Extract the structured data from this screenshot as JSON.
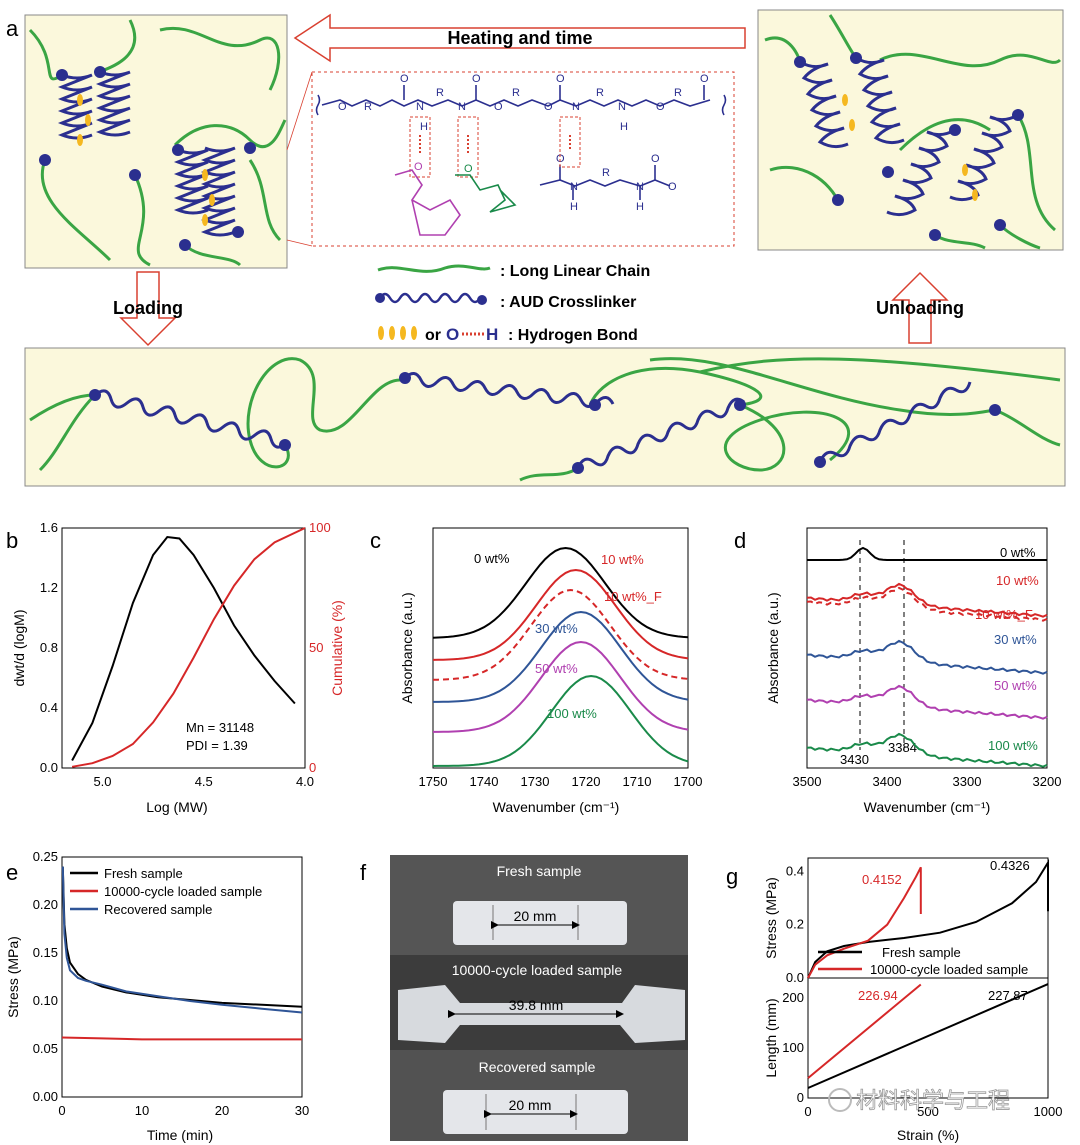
{
  "panel_letters": {
    "a": "a",
    "b": "b",
    "c": "c",
    "d": "d",
    "e": "e",
    "f": "f",
    "g": "g"
  },
  "schematic": {
    "heating": "Heating and time",
    "loading": "Loading",
    "unloading": "Unloading",
    "legend": {
      "chain": ": Long Linear Chain",
      "crosslinker": ": AUD Crosslinker",
      "or": "or",
      "o": "O",
      "h": "H",
      "hbond": ": Hydrogen Bond"
    },
    "chem": {
      "r1": "R",
      "r2": "R",
      "r3": "R"
    }
  },
  "photo": {
    "fresh_label": "Fresh sample",
    "fresh_len": "20 mm",
    "loaded_label": "10000-cycle loaded sample",
    "loaded_len": "39.8 mm",
    "recovered_label": "Recovered sample",
    "recovered_len": "20 mm"
  },
  "watermark": "材料科学与工程",
  "chart_data": [
    {
      "panel": "b",
      "type": "line",
      "xlabel": "Log (MW)",
      "ylabel": "dwt/d (logM)",
      "y2label": "Cumulative (%)",
      "xlim": [
        5.2,
        4.0
      ],
      "ylim": [
        0,
        1.6
      ],
      "y2lim": [
        0,
        100
      ],
      "xticks": [
        "5.0",
        "4.5",
        "4.0"
      ],
      "yticks": [
        "0.0",
        "0.4",
        "0.8",
        "1.2",
        "1.6"
      ],
      "y2ticks": [
        "0",
        "50",
        "100"
      ],
      "series": [
        {
          "color": "#000000",
          "axis": "left",
          "x": [
            5.15,
            5.05,
            4.95,
            4.85,
            4.75,
            4.68,
            4.62,
            4.55,
            4.45,
            4.35,
            4.25,
            4.15,
            4.05
          ],
          "y": [
            0.05,
            0.3,
            0.68,
            1.1,
            1.42,
            1.54,
            1.53,
            1.42,
            1.2,
            0.95,
            0.75,
            0.58,
            0.43
          ]
        },
        {
          "color": "#d62728",
          "axis": "right",
          "x": [
            5.15,
            5.05,
            4.95,
            4.85,
            4.75,
            4.65,
            4.55,
            4.45,
            4.35,
            4.25,
            4.15,
            4.0
          ],
          "y": [
            0.5,
            2,
            5,
            10,
            19,
            31,
            46,
            62,
            76,
            87,
            94,
            100
          ]
        }
      ],
      "annotations": [
        "Mn = 31148",
        "PDI = 1.39"
      ]
    },
    {
      "panel": "c",
      "type": "line",
      "xlabel": "Wavenumber (cm⁻¹)",
      "ylabel": "Absorbance (a.u.)",
      "xlim": [
        1750,
        1700
      ],
      "xticks": [
        "1750",
        "1740",
        "1730",
        "1720",
        "1710",
        "1700"
      ],
      "series": [
        {
          "name": "0 wt%",
          "color": "#000000",
          "peak": 1724
        },
        {
          "name": "10 wt%",
          "color": "#d62728",
          "peak": 1722
        },
        {
          "name": "10 wt%_F",
          "color": "#d62728",
          "dashed": true,
          "peak": 1723
        },
        {
          "name": "30 wt%",
          "color": "#2f5597",
          "peak": 1721
        },
        {
          "name": "50 wt%",
          "color": "#b040b0",
          "peak": 1721
        },
        {
          "name": "100 wt%",
          "color": "#1a8a4a",
          "peak": 1719
        }
      ]
    },
    {
      "panel": "d",
      "type": "line",
      "xlabel": "Wavenumber (cm⁻¹)",
      "ylabel": "Absorbance (a.u.)",
      "xlim": [
        3500,
        3200
      ],
      "xticks": [
        "3500",
        "3400",
        "3300",
        "3200"
      ],
      "reference_lines": [
        "3430",
        "3384"
      ],
      "series": [
        {
          "name": "0 wt%",
          "color": "#000000"
        },
        {
          "name": "10 wt%",
          "color": "#d62728"
        },
        {
          "name": "10 wt%_F",
          "color": "#d62728",
          "dashed": true
        },
        {
          "name": "30 wt%",
          "color": "#2f5597"
        },
        {
          "name": "50 wt%",
          "color": "#b040b0"
        },
        {
          "name": "100 wt%",
          "color": "#1a8a4a"
        }
      ]
    },
    {
      "panel": "e",
      "type": "line",
      "xlabel": "Time (min)",
      "ylabel": "Stress (MPa)",
      "xlim": [
        0,
        30
      ],
      "ylim": [
        0,
        0.25
      ],
      "xticks": [
        "0",
        "10",
        "20",
        "30"
      ],
      "yticks": [
        "0.00",
        "0.05",
        "0.10",
        "0.15",
        "0.20",
        "0.25"
      ],
      "series": [
        {
          "name": "Fresh sample",
          "color": "#000000",
          "x": [
            0.1,
            0.3,
            0.6,
            1,
            2,
            3,
            5,
            8,
            12,
            16,
            20,
            25,
            30
          ],
          "y": [
            0.24,
            0.18,
            0.155,
            0.14,
            0.128,
            0.122,
            0.115,
            0.109,
            0.104,
            0.101,
            0.098,
            0.096,
            0.094
          ]
        },
        {
          "name": "10000-cycle loaded sample",
          "color": "#d62728",
          "x": [
            0,
            5,
            10,
            20,
            30
          ],
          "y": [
            0.062,
            0.061,
            0.06,
            0.06,
            0.06
          ]
        },
        {
          "name": "Recovered sample",
          "color": "#2f5597",
          "x": [
            0.1,
            0.3,
            0.6,
            1,
            2,
            3,
            5,
            8,
            12,
            16,
            20,
            25,
            30
          ],
          "y": [
            0.24,
            0.17,
            0.145,
            0.132,
            0.124,
            0.121,
            0.117,
            0.11,
            0.105,
            0.1,
            0.096,
            0.092,
            0.088
          ]
        }
      ]
    },
    {
      "panel": "g-top",
      "type": "line",
      "ylabel": "Stress (MPa)",
      "xlim": [
        0,
        1000
      ],
      "ylim": [
        0,
        0.45
      ],
      "yticks": [
        "0.0",
        "0.2",
        "0.4"
      ],
      "series": [
        {
          "name": "Fresh sample",
          "color": "#000000",
          "x": [
            0,
            30,
            80,
            150,
            250,
            400,
            550,
            700,
            850,
            950,
            1000,
            1000
          ],
          "y": [
            0,
            0.06,
            0.1,
            0.12,
            0.135,
            0.15,
            0.17,
            0.21,
            0.28,
            0.36,
            0.4326,
            0.25
          ]
        },
        {
          "name": "10000-cycle loaded sample",
          "color": "#d62728",
          "x": [
            0,
            30,
            80,
            150,
            250,
            330,
            400,
            450,
            470,
            470
          ],
          "y": [
            0,
            0.05,
            0.085,
            0.11,
            0.14,
            0.2,
            0.3,
            0.38,
            0.4152,
            0.24
          ]
        }
      ],
      "annotations": [
        "0.4152",
        "0.4326"
      ]
    },
    {
      "panel": "g-bottom",
      "type": "line",
      "xlabel": "Strain (%)",
      "ylabel": "Length (mm)",
      "xlim": [
        0,
        1000
      ],
      "ylim": [
        0,
        240
      ],
      "xticks": [
        "0",
        "500",
        "1000"
      ],
      "yticks": [
        "0",
        "100",
        "200"
      ],
      "series": [
        {
          "color": "#000000",
          "x": [
            0,
            1000
          ],
          "y": [
            20,
            227.87
          ]
        },
        {
          "color": "#d62728",
          "x": [
            0,
            470
          ],
          "y": [
            39.8,
            226.94
          ]
        }
      ],
      "annotations": [
        "226.94",
        "227.87"
      ]
    }
  ]
}
